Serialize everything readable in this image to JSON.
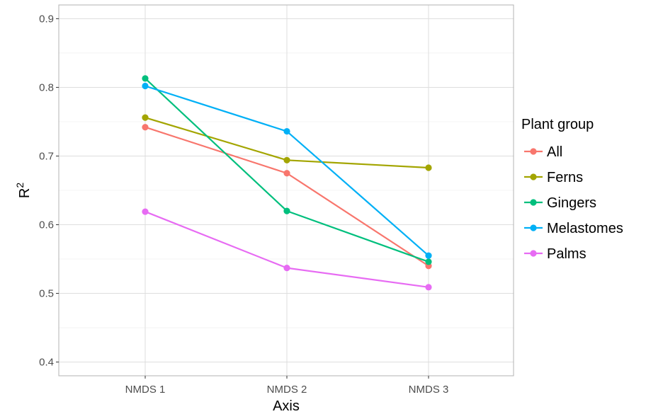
{
  "chart_data": {
    "type": "line",
    "xlabel": "Axis",
    "ylabel": "R",
    "ylabel_superscript": "2",
    "categories": [
      "NMDS 1",
      "NMDS 2",
      "NMDS 3"
    ],
    "ylim": [
      0.38,
      0.92
    ],
    "yticks": [
      0.4,
      0.5,
      0.6,
      0.7,
      0.8,
      0.9
    ],
    "ytick_labels": [
      "0.4",
      "0.5",
      "0.6",
      "0.7",
      "0.8",
      "0.9"
    ],
    "grid": true,
    "legend": {
      "title": "Plant group",
      "placement": "right"
    },
    "series": [
      {
        "name": "All",
        "color": "#F8766D",
        "values": [
          0.742,
          0.675,
          0.54
        ]
      },
      {
        "name": "Ferns",
        "color": "#A3A500",
        "values": [
          0.756,
          0.694,
          0.683
        ]
      },
      {
        "name": "Gingers",
        "color": "#00BF7D",
        "values": [
          0.813,
          0.62,
          0.546
        ]
      },
      {
        "name": "Melastomes",
        "color": "#00B0F6",
        "values": [
          0.802,
          0.736,
          0.555
        ]
      },
      {
        "name": "Palms",
        "color": "#E76BF3",
        "values": [
          0.619,
          0.537,
          0.509
        ]
      }
    ]
  }
}
